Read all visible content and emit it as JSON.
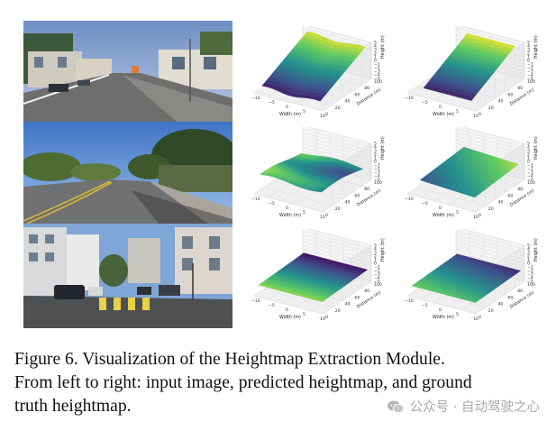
{
  "figure": {
    "caption_lines": [
      "Figure 6.  Visualization of the Heightmap Extraction Module.",
      "From left to right: input image, predicted heightmap, and ground",
      "truth heightmap."
    ],
    "columns": [
      "input image",
      "predicted heightmap",
      "ground truth heightmap"
    ],
    "plot_axes": {
      "width_label": "Width (m)",
      "distance_label": "Distance (m)",
      "height_label": "Height (m)",
      "width_ticks": [
        "−10",
        "−5",
        "0",
        "5",
        "10"
      ],
      "distance_ticks": [
        "0",
        "20",
        "40",
        "60",
        "80",
        "100"
      ],
      "height_ticks": [
        "5",
        "4",
        "3",
        "2",
        "1",
        "0",
        "−1",
        "−2",
        "−3",
        "−4",
        "−5"
      ]
    },
    "colormap": [
      "#440154",
      "#3b528b",
      "#21918c",
      "#5ec962",
      "#fde725"
    ]
  },
  "watermark": {
    "text": "公众号 · 自动驾驶之心",
    "icon": "wechat-icon"
  }
}
